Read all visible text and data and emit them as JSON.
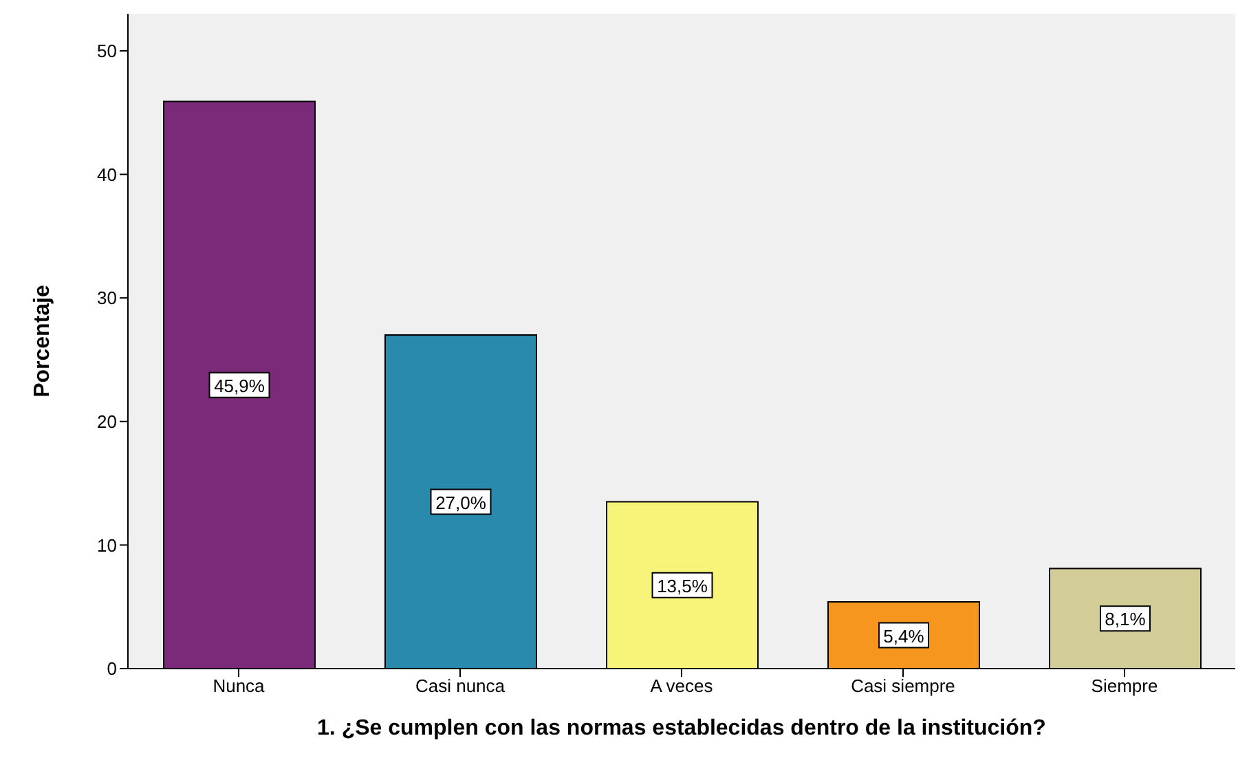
{
  "chart_data": {
    "type": "bar",
    "xlabel": "1.      ¿Se cumplen con las normas establecidas dentro de la institución?",
    "ylabel": "Porcentaje",
    "categories": [
      "Nunca",
      "Casi nunca",
      "A veces",
      "Casi siempre",
      "Siempre"
    ],
    "values": [
      45.9,
      27.0,
      13.5,
      5.4,
      8.1
    ],
    "colors": [
      "#7b2a7a",
      "#2a8aad",
      "#f8f47a",
      "#f6961e",
      "#d2cc96"
    ],
    "value_labels": [
      "45,9%",
      "27,0%",
      "13,5%",
      "5,4%",
      "8,1%"
    ],
    "ylim": [
      0,
      53
    ],
    "yticks": [
      0,
      10,
      20,
      30,
      40,
      50
    ]
  }
}
